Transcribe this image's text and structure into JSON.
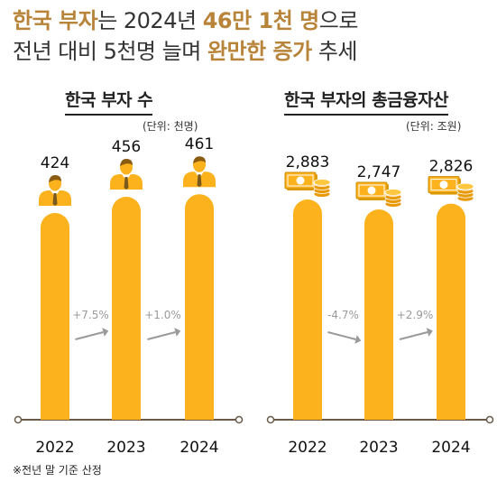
{
  "headline": {
    "line1": [
      {
        "text": "한국 부자",
        "style": "hl"
      },
      {
        "text": "는 2024년 ",
        "style": "pl"
      },
      {
        "text": "46만 1천 명",
        "style": "hl"
      },
      {
        "text": "으로",
        "style": "pl"
      }
    ],
    "line2": [
      {
        "text": "전년 대비 5천명 늘며 ",
        "style": "pl"
      },
      {
        "text": "완만한 증가",
        "style": "hl"
      },
      {
        "text": " 추세",
        "style": "pl"
      }
    ]
  },
  "colors": {
    "bar": "#fbb21c",
    "arrow": "#9a9a9a",
    "axis": "#6b5a4a",
    "accent": "#b8843a"
  },
  "chart_data": [
    {
      "type": "bar",
      "title": "한국 부자 수",
      "unit": "(단위: 천명)",
      "icon": "businessman-icon",
      "categories": [
        "2022",
        "2023",
        "2024"
      ],
      "values": [
        424,
        456,
        461
      ],
      "value_labels": [
        "424",
        "456",
        "461"
      ],
      "changes": [
        "+7.5%",
        "+1.0%"
      ]
    },
    {
      "type": "bar",
      "title": "한국 부자의 총금융자산",
      "unit": "(단위: 조원)",
      "icon": "money-coins-icon",
      "categories": [
        "2022",
        "2023",
        "2024"
      ],
      "values": [
        2883,
        2747,
        2826
      ],
      "value_labels": [
        "2,883",
        "2,747",
        "2,826"
      ],
      "changes": [
        "-4.7%",
        "+2.9%"
      ]
    }
  ],
  "footnote": "※전년 말 기준 산정"
}
